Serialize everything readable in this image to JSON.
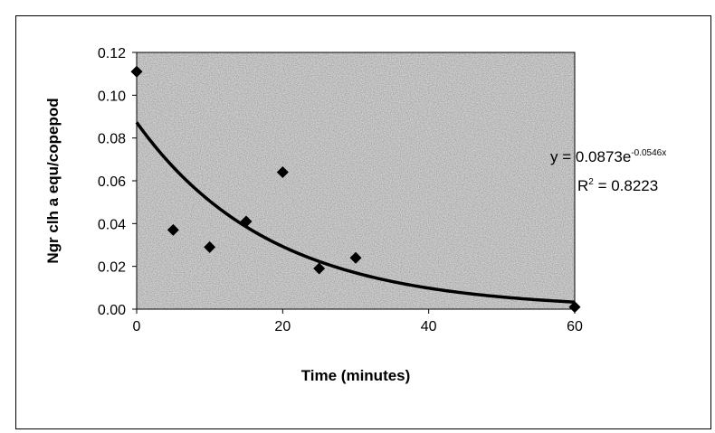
{
  "chart_data": {
    "type": "scatter",
    "xlabel": "Time (minutes)",
    "ylabel": "Ngr clh a equ/copepod",
    "xlim": [
      0,
      60
    ],
    "ylim": [
      0,
      0.12
    ],
    "x_ticks": [
      "0",
      "20",
      "40",
      "60"
    ],
    "y_ticks": [
      "0.00",
      "0.02",
      "0.04",
      "0.06",
      "0.08",
      "0.10",
      "0.12"
    ],
    "grid": false,
    "points": [
      {
        "x": 0,
        "y": 0.111
      },
      {
        "x": 5,
        "y": 0.037
      },
      {
        "x": 10,
        "y": 0.029
      },
      {
        "x": 15,
        "y": 0.041
      },
      {
        "x": 20,
        "y": 0.064
      },
      {
        "x": 25,
        "y": 0.019
      },
      {
        "x": 30,
        "y": 0.024
      },
      {
        "x": 60,
        "y": 0.001
      }
    ],
    "trendline": {
      "type": "exponential",
      "a": 0.0873,
      "b": -0.0546,
      "equation_main": "y = 0.0873e",
      "equation_exp": "-0.0546x",
      "r2_label": "R",
      "r2_sup": "2",
      "r2_value": " = 0.8223"
    },
    "plot_background": "#cfcfcf",
    "marker_color": "#000000",
    "line_color": "#000000"
  }
}
